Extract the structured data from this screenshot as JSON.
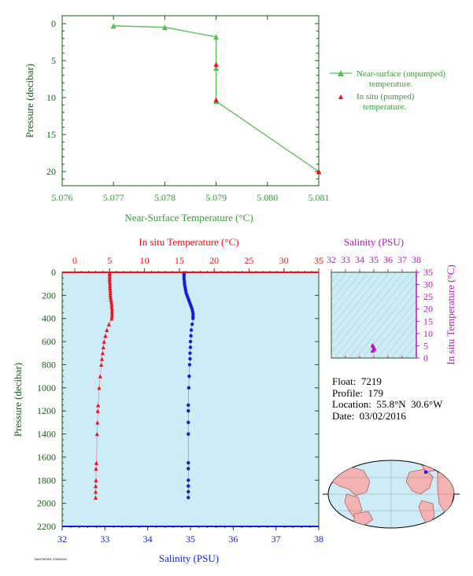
{
  "colors": {
    "green_text": "#3a9a3a",
    "green_line": "#55bb55",
    "dark_axis": "#1a5a1a",
    "red": "#e8141e",
    "blue": "#1020d8",
    "magenta": "#c010c0",
    "panel_bg": "#cdecf7"
  },
  "info": {
    "float": "Float:  7219",
    "profile": "Profile:  179",
    "location": "Location:  55.8°N  30.6°W",
    "date": "Date:  03/02/2016"
  },
  "footer_tag": "NWTNR4RL Z0000001",
  "chart_data": [
    {
      "type": "line",
      "id": "near-surface",
      "xlabel": "Near-Surface Temperature (°C)",
      "ylabel": "Pressure (decibar)",
      "xlim": [
        5.076,
        5.081
      ],
      "ylim": [
        22,
        -1
      ],
      "xticks": [
        "5.076",
        "5.077",
        "5.078",
        "5.079",
        "5.080",
        "5.081"
      ],
      "yticks": [
        "0",
        "5",
        "10",
        "15",
        "20"
      ],
      "series": [
        {
          "name": "Near-surface (unpumped) temperature.",
          "marker": "triangle",
          "x": [
            5.077,
            5.078,
            5.079,
            5.079,
            5.079,
            5.081
          ],
          "y": [
            0.3,
            0.5,
            1.8,
            6.0,
            10.5,
            20.0
          ]
        },
        {
          "name": "In situ (pumped) temperature.",
          "marker": "triangle",
          "x": [
            5.079,
            5.079,
            5.081
          ],
          "y": [
            5.5,
            10.3,
            20.0
          ]
        }
      ],
      "legend": {
        "unpumped_l1": "Near-surface (unpumped)",
        "unpumped_l2": "temperature.",
        "pumped_l1": "In situ (pumped)",
        "pumped_l2": "temperature."
      }
    },
    {
      "type": "scatter",
      "id": "profile",
      "top_xlabel": "In situ Temperature (°C)",
      "bottom_xlabel": "Salinity (PSU)",
      "ylabel": "Pressure (decibar)",
      "temp_xlim": [
        0,
        35
      ],
      "sal_xlim": [
        32,
        38
      ],
      "ylim": [
        2200,
        0
      ],
      "temp_ticks": [
        "0",
        "5",
        "10",
        "15",
        "20",
        "25",
        "30",
        "35"
      ],
      "sal_ticks": [
        "32",
        "33",
        "34",
        "35",
        "36",
        "37",
        "38"
      ],
      "yticks": [
        "0",
        "200",
        "400",
        "600",
        "800",
        "1000",
        "1200",
        "1400",
        "1600",
        "1800",
        "2000",
        "2200"
      ],
      "temperature": {
        "pressure": [
          5,
          20,
          40,
          60,
          80,
          100,
          120,
          140,
          160,
          180,
          200,
          220,
          240,
          260,
          280,
          300,
          320,
          340,
          360,
          380,
          400,
          450,
          500,
          550,
          600,
          650,
          700,
          750,
          800,
          900,
          1000,
          1150,
          1200,
          1300,
          1400,
          1650,
          1700,
          1800,
          1850,
          1900,
          1950
        ],
        "values": [
          5.0,
          5.0,
          5.0,
          5.0,
          5.0,
          5.05,
          5.05,
          5.05,
          5.1,
          5.1,
          5.1,
          5.15,
          5.2,
          5.25,
          5.3,
          5.3,
          5.35,
          5.35,
          5.35,
          5.35,
          5.3,
          4.9,
          4.6,
          4.4,
          4.2,
          4.1,
          4.0,
          3.9,
          3.8,
          3.65,
          3.5,
          3.35,
          3.3,
          3.25,
          3.2,
          3.1,
          3.05,
          3.05,
          3.0,
          3.0,
          3.0
        ]
      },
      "salinity": {
        "pressure": [
          5,
          20,
          40,
          60,
          80,
          100,
          120,
          140,
          160,
          180,
          200,
          220,
          240,
          260,
          280,
          300,
          320,
          340,
          360,
          380,
          400,
          450,
          500,
          550,
          600,
          650,
          700,
          750,
          800,
          900,
          1000,
          1150,
          1200,
          1300,
          1400,
          1650,
          1700,
          1800,
          1850,
          1900,
          1950
        ],
        "values": [
          34.85,
          34.85,
          34.85,
          34.85,
          34.86,
          34.86,
          34.87,
          34.88,
          34.89,
          34.9,
          34.92,
          34.94,
          34.96,
          34.98,
          35.0,
          35.02,
          35.04,
          35.05,
          35.06,
          35.06,
          35.06,
          35.04,
          35.02,
          35.01,
          35.0,
          35.0,
          34.99,
          34.99,
          34.98,
          34.97,
          34.96,
          34.95,
          34.95,
          34.95,
          34.95,
          34.95,
          34.95,
          34.95,
          34.95,
          34.95,
          34.95
        ]
      }
    },
    {
      "type": "scatter",
      "id": "ts-diagram",
      "title": "Salinity (PSU)",
      "ylabel": "In situ Temperature (°C)",
      "xlim": [
        32,
        38
      ],
      "ylim": [
        0,
        35
      ],
      "xticks": [
        "32",
        "33",
        "34",
        "35",
        "36",
        "37",
        "38"
      ],
      "yticks": [
        "0",
        "5",
        "10",
        "15",
        "20",
        "25",
        "30",
        "35"
      ],
      "points": {
        "x": [
          34.9,
          35.0,
          35.05,
          35.0,
          34.95,
          34.9,
          35.0
        ],
        "y": [
          3.0,
          3.5,
          4.0,
          4.5,
          5.0,
          5.3,
          4.2
        ]
      }
    }
  ],
  "map": {
    "marker_lat": 55.8,
    "marker_lon": -30.6
  }
}
